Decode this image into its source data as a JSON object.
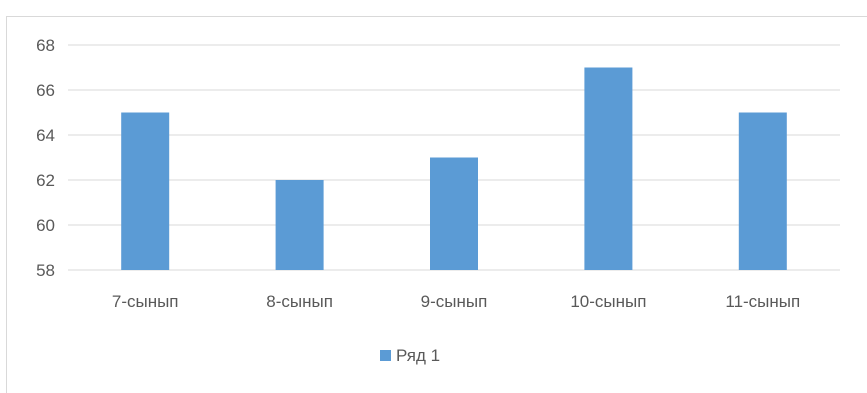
{
  "chart_data": {
    "type": "bar",
    "categories": [
      "7-сынып",
      "8-сынып",
      "9-сынып",
      "10-сынып",
      "11-сынып"
    ],
    "series": [
      {
        "name": "Ряд 1",
        "values": [
          65,
          62,
          63,
          67,
          65
        ],
        "color": "#5b9bd5"
      }
    ],
    "ylim": [
      58,
      68
    ],
    "yticks": [
      "58",
      "60",
      "62",
      "64",
      "66",
      "68"
    ],
    "grid": true,
    "legend_position": "bottom",
    "colors": {
      "gridline": "#d9d9d9",
      "axis_text": "#595959"
    }
  }
}
